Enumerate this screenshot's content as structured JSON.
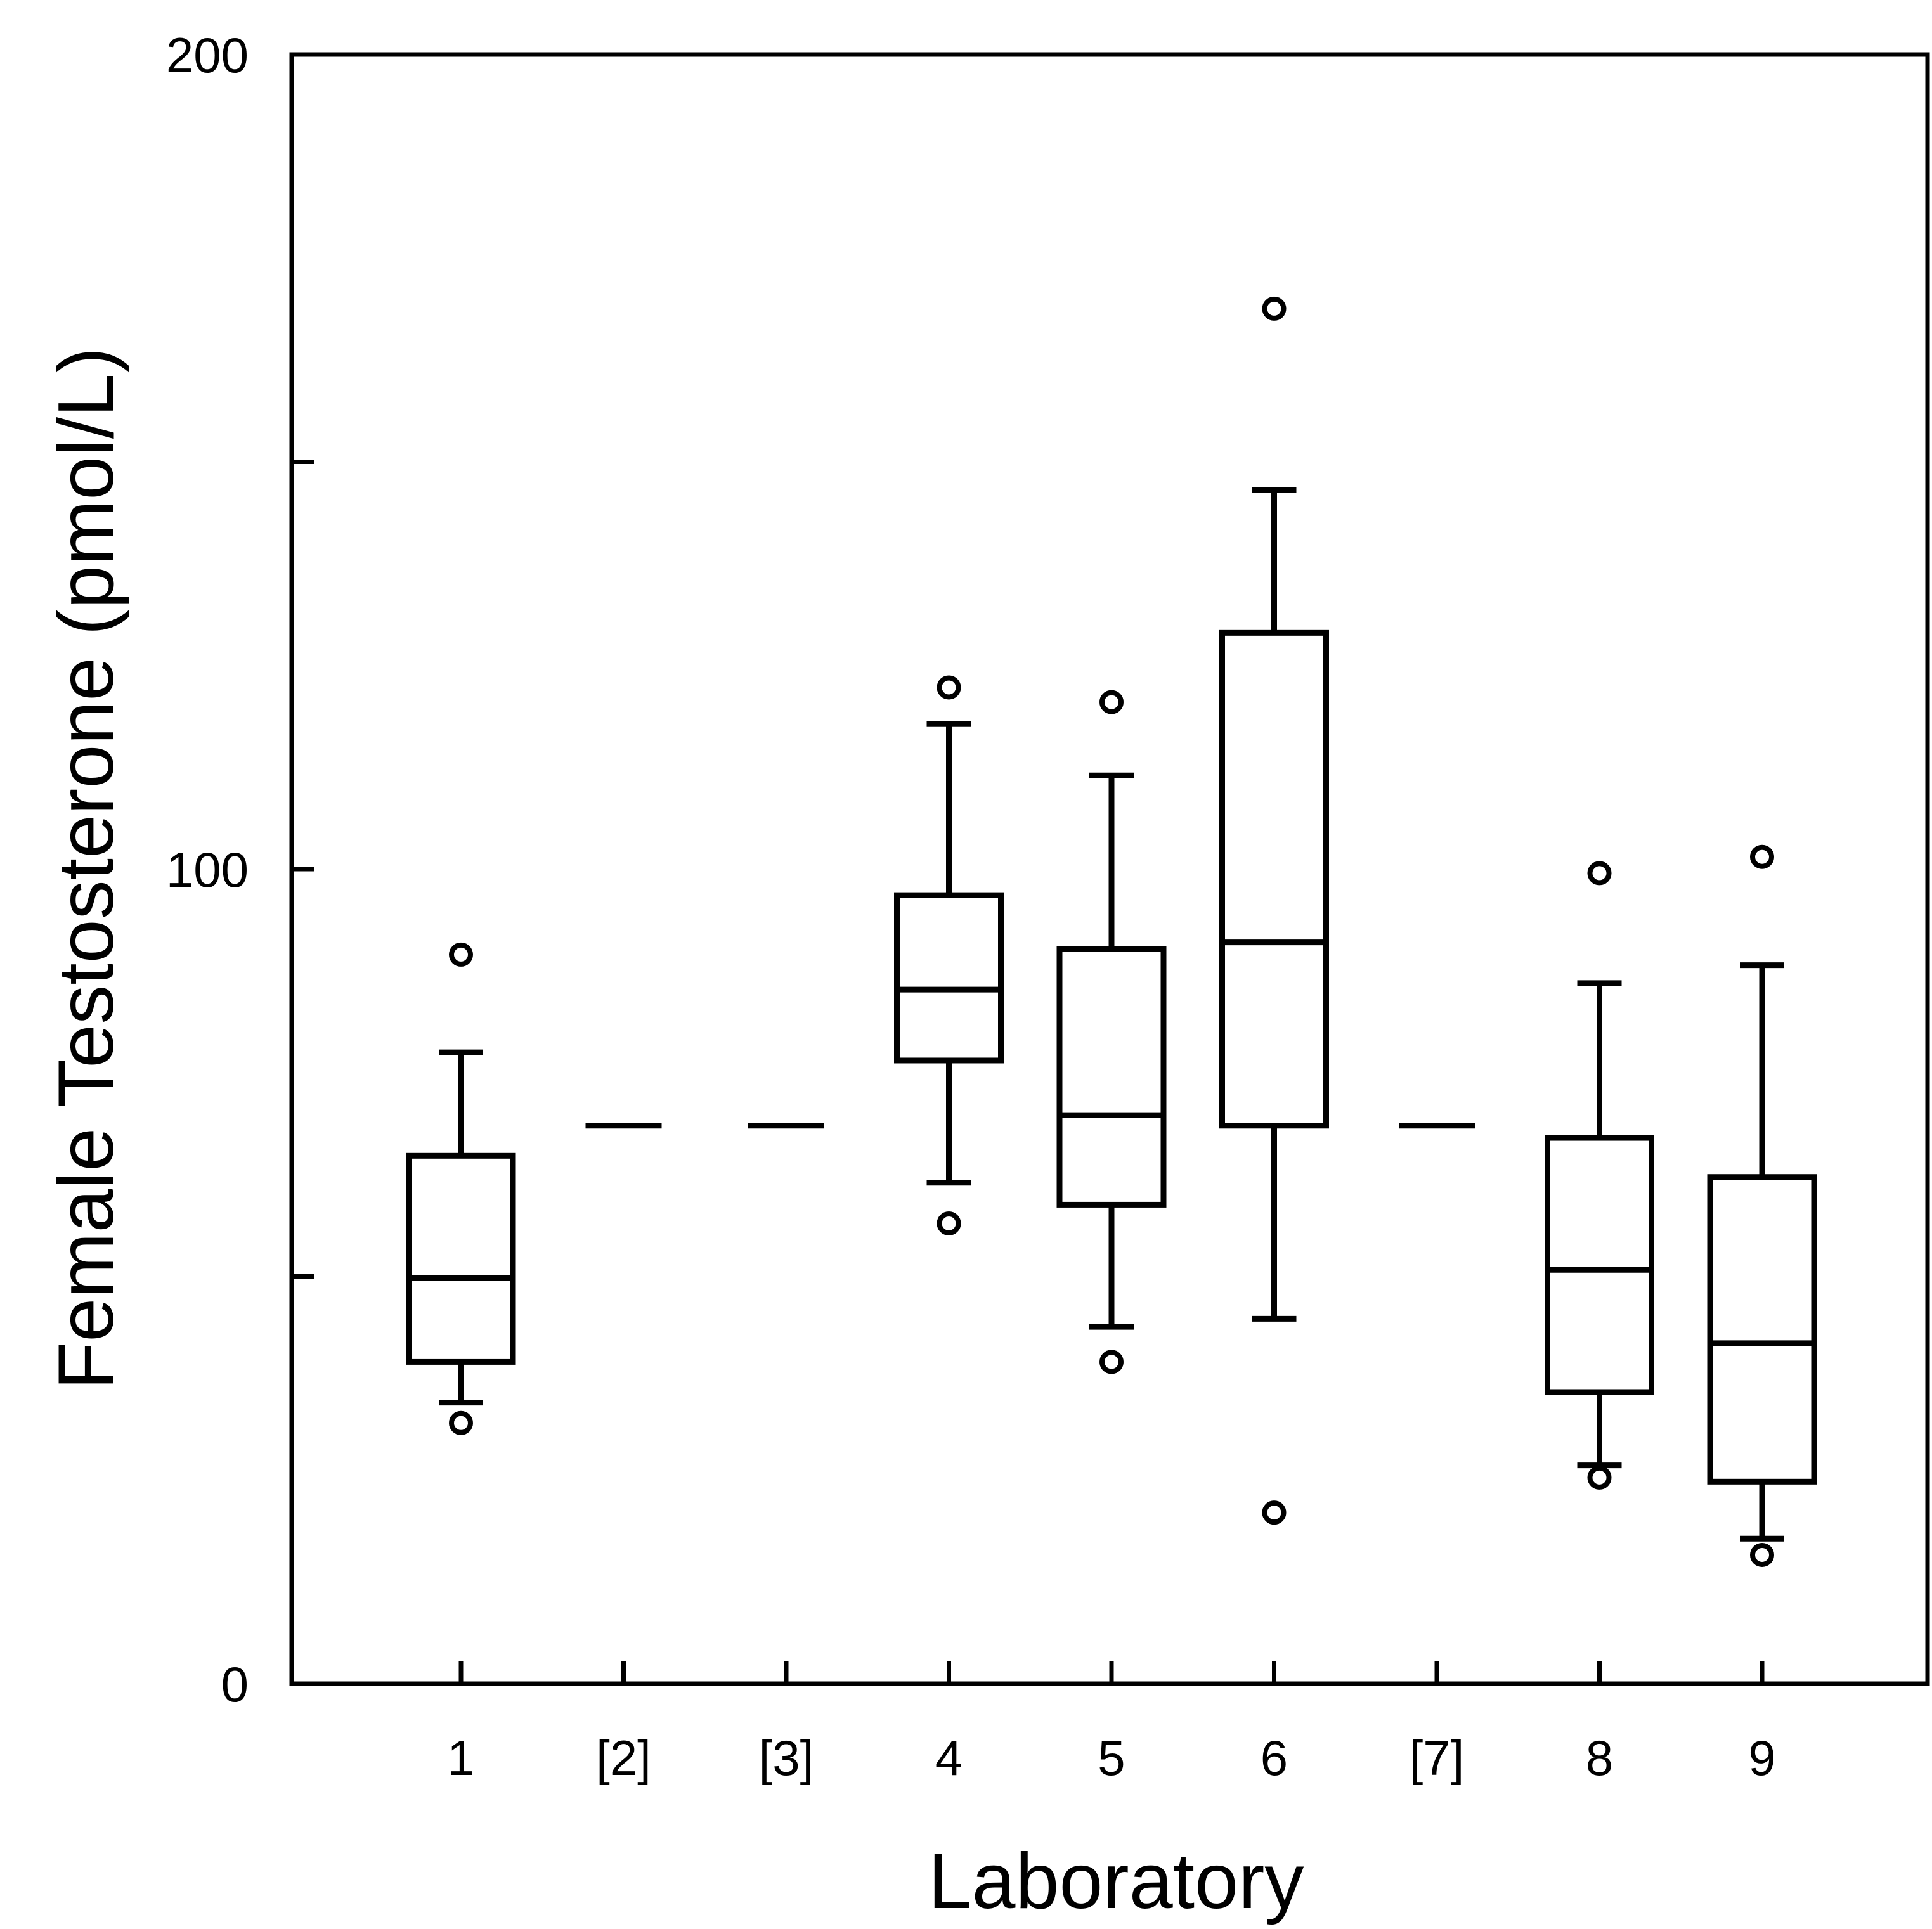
{
  "chart_data": {
    "type": "boxplot",
    "xlabel": "Laboratory",
    "ylabel": "Female Testosterone (pmol/L)",
    "ylim": [
      0,
      200
    ],
    "yticks": [
      0,
      50,
      100,
      150,
      200
    ],
    "ytick_labels": [
      "0",
      "",
      "100",
      "",
      "200"
    ],
    "grid": false,
    "categories": [
      "1",
      "[2]",
      "[3]",
      "4",
      "5",
      "6",
      "[7]",
      "8",
      "9"
    ],
    "boxes": [
      {
        "category": "1",
        "whisker_low": 34.5,
        "q1": 39.5,
        "median": 49.8,
        "q3": 64.8,
        "whisker_high": 77.5,
        "outliers": [
          32.0,
          89.5
        ]
      },
      {
        "category": "4",
        "whisker_low": 61.5,
        "q1": 76.5,
        "median": 85.2,
        "q3": 96.8,
        "whisker_high": 117.8,
        "outliers": [
          56.5,
          122.3
        ]
      },
      {
        "category": "5",
        "whisker_low": 43.8,
        "q1": 58.8,
        "median": 69.8,
        "q3": 90.2,
        "whisker_high": 111.5,
        "outliers": [
          39.5,
          120.5
        ]
      },
      {
        "category": "6",
        "whisker_low": 44.8,
        "q1": 68.5,
        "median": 91.0,
        "q3": 129.0,
        "whisker_high": 146.5,
        "outliers": [
          168.8,
          21.0
        ]
      },
      {
        "category": "8",
        "whisker_low": 26.8,
        "q1": 35.8,
        "median": 50.8,
        "q3": 67.0,
        "whisker_high": 86.0,
        "outliers": [
          25.3,
          99.5
        ]
      },
      {
        "category": "9",
        "whisker_low": 17.8,
        "q1": 24.8,
        "median": 41.8,
        "q3": 62.2,
        "whisker_high": 88.2,
        "outliers": [
          15.8,
          101.5
        ]
      }
    ],
    "reference_lines": [
      {
        "category": "[2]",
        "value": 68.5
      },
      {
        "category": "[3]",
        "value": 68.5
      },
      {
        "category": "[7]",
        "value": 68.5
      }
    ]
  }
}
